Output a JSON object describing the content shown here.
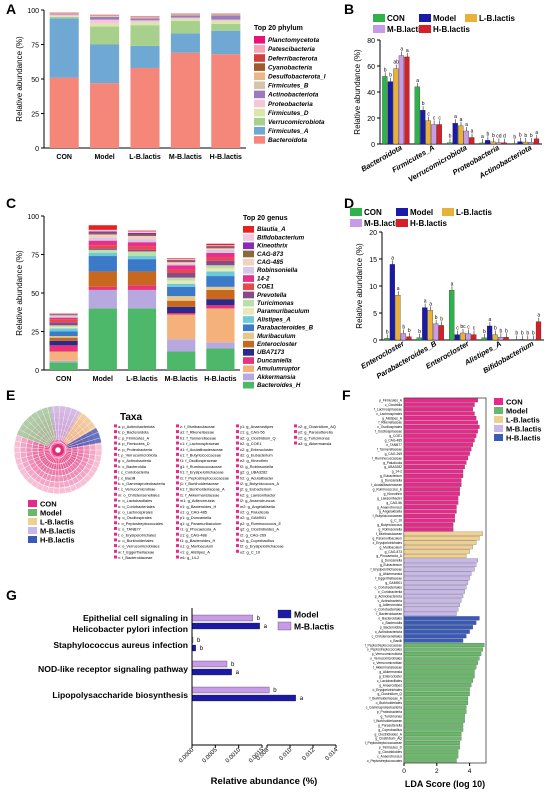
{
  "panel_letters": {
    "a": "A",
    "b": "B",
    "c": "C",
    "d": "D",
    "e": "E",
    "f": "F",
    "g": "G"
  },
  "colors": {
    "con": "#2db34a",
    "model": "#1a1aa6",
    "lb": "#e8b23a",
    "mb": "#c89be8",
    "hb": "#d61f26",
    "grid": "#888888"
  },
  "chart_data": [
    {
      "id": "A",
      "type": "bar",
      "stacked": true,
      "ylabel": "Relative abundance (%)",
      "categories": [
        "CON",
        "Model",
        "L-B.lactis",
        "M-B.lactis",
        "H-B.lactis"
      ],
      "ylim": [
        0,
        100
      ],
      "yticks": [
        "0",
        "25",
        "50",
        "75",
        "100"
      ],
      "legend_title": "Top 20 phylum",
      "series": [
        {
          "name": "Bacteroidota",
          "color": "#f4877a",
          "values": [
            51,
            47,
            58,
            69,
            68
          ]
        },
        {
          "name": "Firmicutes_A",
          "color": "#6fa8d2",
          "values": [
            43,
            28,
            16,
            14,
            17
          ]
        },
        {
          "name": "Verrucomicrobiota",
          "color": "#a8d08d",
          "values": [
            1,
            13,
            15,
            9,
            5
          ]
        },
        {
          "name": "Firmicutes_D",
          "color": "#d8e8a8",
          "values": [
            0.5,
            2,
            2,
            1.5,
            2
          ]
        },
        {
          "name": "Proteobacteria",
          "color": "#f4c7d8",
          "values": [
            1,
            3,
            1.5,
            1,
            1
          ]
        },
        {
          "name": "Actinobacteriota",
          "color": "#9a7cbc",
          "values": [
            0.5,
            2,
            1.5,
            1.5,
            3
          ]
        },
        {
          "name": "Firmicutes_B",
          "color": "#d8c4a8",
          "values": [
            0.3,
            0.5,
            0.5,
            0.5,
            0.5
          ]
        },
        {
          "name": "Desulfobacterota_I",
          "color": "#e8b888",
          "values": [
            0.2,
            0.3,
            0.3,
            0.3,
            0.3
          ]
        },
        {
          "name": "Cyanobacteria",
          "color": "#a05a2c",
          "values": [
            0.2,
            0.2,
            0.2,
            0.2,
            0.2
          ]
        },
        {
          "name": "Deferribacterota",
          "color": "#d04040",
          "values": [
            0.2,
            0.2,
            0.2,
            0.2,
            0.2
          ]
        },
        {
          "name": "Patescibacteria",
          "color": "#f4a6b8",
          "values": [
            0.3,
            0.4,
            0.3,
            0.3,
            0.3
          ]
        },
        {
          "name": "Planctomycetota",
          "color": "#e8127a",
          "values": [
            0.1,
            0.1,
            0.1,
            0.1,
            0.1
          ]
        }
      ],
      "legend_labels": [
        "Planctomycetota",
        "Patescibacteria",
        "Deferribacterota",
        "Cyanobacteria",
        "Desulfobacterota_I",
        "Firmicutes_B",
        "Actinobacteriota",
        "Proteobacteria",
        "Firmicutes_D",
        "Verrucomicrobiota",
        "Firmicutes_A",
        "Bacteroidota"
      ]
    },
    {
      "id": "B",
      "type": "bar",
      "ylabel": "Relative abundance (%)",
      "categories": [
        "Bacteroidota",
        "Firmicutes_A",
        "Verrucomicrobiota",
        "Proteobacteria",
        "Actinobacteriota"
      ],
      "ylim": [
        0,
        80
      ],
      "yticks": [
        "0",
        "20",
        "40",
        "60",
        "80"
      ],
      "series": [
        {
          "name": "CON",
          "values": [
            52,
            44,
            1,
            0.8,
            0.4
          ],
          "letters": [
            "b",
            "a",
            "b",
            "a",
            "b"
          ]
        },
        {
          "name": "Model",
          "values": [
            48,
            26,
            16,
            2.8,
            1.8
          ],
          "letters": [
            "b",
            "b",
            "a",
            "b",
            "b"
          ]
        },
        {
          "name": "L-B.lactis",
          "values": [
            58,
            18,
            14,
            1.6,
            1.5
          ],
          "letters": [
            "ab",
            "c",
            "a",
            "b",
            "b"
          ]
        },
        {
          "name": "M-B.lactis",
          "values": [
            68,
            15,
            10,
            1.1,
            1.4
          ],
          "letters": [
            "a",
            "c",
            "a",
            "cd",
            "b"
          ]
        },
        {
          "name": "H-B.lactis",
          "values": [
            67,
            15,
            5,
            1,
            4
          ],
          "letters": [
            "a",
            "c",
            "a",
            "d",
            "a"
          ]
        }
      ]
    },
    {
      "id": "C",
      "type": "bar",
      "stacked": true,
      "ylabel": "Relative abundance (%)",
      "categories": [
        "CON",
        "Model",
        "L-B.lactis",
        "M-B.lactis",
        "H-B.lactis"
      ],
      "ylim": [
        0,
        100
      ],
      "yticks": [
        "0",
        "25",
        "50",
        "75",
        "100"
      ],
      "legend_title": "Top 20 genus",
      "series": [
        {
          "name": "Bacteroides_H",
          "color": "#4db86a",
          "values": [
            5,
            40,
            40,
            12,
            14
          ]
        },
        {
          "name": "Akkermansia",
          "color": "#b8a8e0",
          "values": [
            1,
            12,
            12,
            8,
            4
          ]
        },
        {
          "name": "Amulumruptor",
          "color": "#f4b27a",
          "values": [
            6,
            0,
            0,
            16,
            22
          ]
        },
        {
          "name": "Duncaniella",
          "color": "#e8327a",
          "values": [
            4,
            2,
            3,
            1,
            2
          ]
        },
        {
          "name": "UBA7173",
          "color": "#2a2a8a",
          "values": [
            3,
            0,
            0,
            4,
            4
          ]
        },
        {
          "name": "Enterocloster",
          "color": "#c8681e",
          "values": [
            2,
            10,
            9,
            4,
            6
          ]
        },
        {
          "name": "Muribaculum",
          "color": "#e8c88a",
          "values": [
            1,
            0,
            0,
            3,
            2
          ]
        },
        {
          "name": "Parabacteroides_B",
          "color": "#3a7ac8",
          "values": [
            3,
            10,
            8,
            6,
            7
          ]
        },
        {
          "name": "Alistipes_A",
          "color": "#6ecad8",
          "values": [
            2,
            2,
            2,
            2,
            3
          ]
        },
        {
          "name": "Paramuribaculum",
          "color": "#e8e8b8",
          "values": [
            1,
            0,
            0,
            2,
            2
          ]
        },
        {
          "name": "Turicimonas",
          "color": "#b8e0a8",
          "values": [
            1,
            2,
            3,
            2,
            2
          ]
        },
        {
          "name": "Prevotella",
          "color": "#8a4a8a",
          "values": [
            2,
            1,
            1,
            3,
            3
          ]
        },
        {
          "name": "COE1",
          "color": "#e84848",
          "values": [
            2,
            2,
            2,
            2,
            2
          ]
        },
        {
          "name": "14-2",
          "color": "#e8308a",
          "values": [
            1,
            3,
            3,
            3,
            3
          ]
        },
        {
          "name": "Robinsoniella",
          "color": "#d8c8e8",
          "values": [
            1,
            2,
            2,
            1,
            2
          ]
        },
        {
          "name": "CAG-485",
          "color": "#f4d0c0",
          "values": [
            0.5,
            2,
            2,
            1,
            1
          ]
        },
        {
          "name": "CAG-873",
          "color": "#8a6a3a",
          "values": [
            0.5,
            1,
            1,
            1,
            1
          ]
        },
        {
          "name": "Kineothrix",
          "color": "#8a2ab8",
          "values": [
            0.3,
            1,
            1,
            0.5,
            0.5
          ]
        },
        {
          "name": "Bifidobacterium",
          "color": "#f4c8e0",
          "values": [
            0.3,
            1,
            1,
            0.5,
            0.5
          ]
        },
        {
          "name": "Blautia_A",
          "color": "#e82020",
          "values": [
            0.2,
            3,
            0.5,
            0.5,
            1
          ]
        }
      ],
      "legend_labels": [
        "Blautia_A",
        "Bifidobacterium",
        "Kineothrix",
        "CAG-873",
        "CAG-485",
        "Robinsoniella",
        "14-2",
        "COE1",
        "Prevotella",
        "Turicimonas",
        "Paramuribaculum",
        "Alistipes_A",
        "Parabacteroides_B",
        "Muribaculum",
        "Enterocloster",
        "UBA7173",
        "Duncaniella",
        "Amulumruptor",
        "Akkermansia",
        "Bacteroides_H"
      ]
    },
    {
      "id": "D",
      "type": "bar",
      "ylabel": "Relative abundance (%)",
      "categories": [
        "Enterocloster",
        "Parabacteroides_B",
        "Enterocloster",
        "Alistipes_A",
        "Bifidobacterium"
      ],
      "ylim": [
        0,
        20
      ],
      "yticks": [
        "0",
        "5",
        "10",
        "15",
        "20"
      ],
      "series": [
        {
          "name": "CON",
          "values": [
            0.3,
            0.4,
            9.2,
            0.4,
            0.1
          ],
          "letters": [
            "b",
            "b",
            "a",
            "b",
            "b"
          ]
        },
        {
          "name": "Model",
          "values": [
            14,
            6,
            1,
            2.6,
            0.1
          ],
          "letters": [
            "a",
            "a",
            "c",
            "a",
            "b"
          ]
        },
        {
          "name": "L-B.lactis",
          "values": [
            8.3,
            5.5,
            1.3,
            1,
            0.1
          ],
          "letters": [
            "a",
            "a",
            "bc",
            "b",
            "b"
          ]
        },
        {
          "name": "M-B.lactis",
          "values": [
            1.2,
            3,
            1.2,
            0.5,
            0.1
          ],
          "letters": [
            "b",
            "b",
            "c",
            "b",
            "b"
          ]
        },
        {
          "name": "H-B.lactis",
          "values": [
            0.6,
            2.7,
            1,
            0.5,
            3.4
          ],
          "letters": [
            "b",
            "b",
            "c",
            "b",
            "a"
          ]
        }
      ]
    },
    {
      "id": "G",
      "type": "bar",
      "orientation": "horizontal",
      "xlabel": "Relative abundance (%)",
      "categories": [
        "Epithelial cell signaling in Helicobacter pylori infection",
        "Staphylococcus aureus infection",
        "NOD-like receptor signaling pathway",
        "Lipopolysaccharide biosynthesis"
      ],
      "x_left_ticks": [
        "0.0000",
        "0.0005",
        "0.0010",
        "0.0015"
      ],
      "x_right_ticks": [
        "0.008",
        "0.010",
        "0.012",
        "0.014"
      ],
      "series": [
        {
          "name": "Model",
          "values": [
            0.00145,
            8e-05,
            0.00085,
            0.0105
          ],
          "letters": [
            "a",
            "b",
            "a",
            "a"
          ]
        },
        {
          "name": "M-B.lactis",
          "values": [
            0.0013,
            2e-05,
            0.00075,
            0.0082
          ],
          "letters": [
            "b",
            "b",
            "b",
            "b"
          ]
        }
      ]
    }
  ],
  "legend_groups": [
    "CON",
    "Model",
    "L-B.lactis",
    "M-B.lactis",
    "H-B.lactis"
  ],
  "legend_groups_g": [
    "Model",
    "M-B.lactis"
  ],
  "panel_e": {
    "taxa_title": "Taxa",
    "col1": [
      "a: p_Actinobacteriota",
      "b: p_Bacteroidota",
      "c: p_Firmicutes_A",
      "d: p_Firmicutes_D",
      "e: p_Proteobacteria",
      "f: p_Verrucomicrobiota",
      "g: c_Actinobacteria",
      "h: c_Bacteroidia",
      "i: c_Coriobacteriia",
      "j: c_Bacilli",
      "k: c_Gammaproteobacteria",
      "l: c_Verrucomicrobiae",
      "m: o_Christensenellales",
      "n: o_Lactobacillales",
      "o: o_Coriobacteriales",
      "p: o_Lachnospirales",
      "q: o_Oscillospirales",
      "r: o_Peptostreptococcales",
      "s: o_TANB77",
      "t: o_Erysipelotrichales",
      "u: o_Burkholderiales",
      "v: o_Verrucomicrobiales",
      "w: f_Eggerthellaceae",
      "x: f_Bacteroidaceae"
    ],
    "col2": [
      "z: f_Muribaculaceae",
      "a1: f_Rikenellaceae",
      "b1: f_Tannerellaceae",
      "c1: f_Lachnospiraceae",
      "d1: f_Acutalibacteraceae",
      "e1: f_Butyricicoccaceae",
      "f1: f_Oscillospiraceae",
      "g1: f_Ruminococcaceae",
      "h1: f_Erysipelotrichaceae",
      "i1: f_Peptostreptococcaceae",
      "j1: f_Burkholderiaceae",
      "k1: f_Burkholderiaceae_A",
      "l1: f_Akkermansiaceae",
      "m1: g_Adlercreutzia",
      "n1: g_Bacteroides_H",
      "o1: g_CAG-485",
      "p1: g_Duncaniella",
      "q1: g_Paramuribaculum",
      "r1: g_Phocaeicola_A",
      "s1: g_CAG-488",
      "t1: g_Bacteroides_H",
      "u1: g_Muribaculum",
      "v1: g_Alistipes_A",
      "w1: g_14-2"
    ],
    "col3": [
      "y1: g_Anaerostipes",
      "z1: g_CAG-56",
      "a2: g_Clostridium_Q",
      "b2: g_COE1",
      "c2: g_Enterocloster",
      "d2: g_Eubacterium",
      "e2: g_Kineothrix",
      "f2: g_Robinsoniella",
      "g2: g_UBA3282",
      "h2: g_Acutalibacter",
      "i2: g_Butyricicoccus_A",
      "j2: g_Eubacterium",
      "k2: g_Lawsonibacter",
      "l2: g_Anaerotruncus",
      "m2: g_Angelakisella",
      "n2: g_Paludicola",
      "o2: g_GAM901",
      "p2: g_Ruminococcus_E",
      "q2: g_Clostridioides_A",
      "r2: g_CAG-269",
      "s2: g_Coprobacillus",
      "t2: g_Erysipelotrichaceae",
      "u2: g_C_10"
    ],
    "col4": [
      "x2: g_Clostridium_AQ",
      "y2: g_Parasutterella",
      "z2: g_Turicimonas",
      "a3: g_Akkermansia"
    ]
  },
  "panel_f": {
    "xlabel": "LDA Score (log 10)",
    "xticks": [
      "0",
      "2",
      "4"
    ],
    "groups": [
      {
        "name": "CON",
        "color": "#e8288a",
        "start": 0,
        "count": 30
      },
      {
        "name": "L-B.lactis",
        "color": "#f0d090",
        "start": 30,
        "count": 6
      },
      {
        "name": "M-B.lactis",
        "color": "#c8b8e8",
        "start": 36,
        "count": 13
      },
      {
        "name": "H-B.lactis",
        "color": "#3a5ab8",
        "start": 49,
        "count": 6
      },
      {
        "name": "Model",
        "color": "#6ab86a",
        "start": 55,
        "count": 27
      }
    ],
    "values": [
      4.5,
      4.3,
      4.2,
      4.3,
      4.4,
      4.5,
      4.6,
      4.5,
      4.4,
      4.3,
      4.2,
      4.1,
      4.0,
      3.9,
      3.8,
      3.7,
      3.6,
      3.6,
      3.5,
      3.5,
      3.4,
      3.4,
      3.3,
      3.3,
      3.2,
      3.2,
      3.1,
      3.1,
      3.0,
      3.0,
      4.8,
      4.6,
      4.4,
      4.2,
      4.0,
      3.8,
      4.5,
      4.4,
      4.3,
      4.1,
      4.0,
      3.9,
      3.8,
      3.7,
      3.6,
      3.5,
      3.4,
      3.3,
      3.2,
      4.6,
      4.4,
      4.2,
      4.0,
      3.8,
      3.6,
      4.9,
      4.8,
      4.7,
      4.6,
      4.5,
      4.4,
      4.3,
      4.3,
      4.2,
      4.1,
      4.0,
      4.0,
      3.9,
      3.9,
      3.8,
      3.8,
      3.7,
      3.7,
      3.6,
      3.6,
      3.5,
      3.5,
      3.4,
      3.4,
      3.3,
      3.3,
      3.2
    ],
    "labels": [
      "p_Firmicutes_A",
      "c_Clostridia",
      "f_Lachnospiraceae",
      "c_Lachnospirales",
      "g_Alistipes_A",
      "f_Rikenellaceae",
      "c_Oscillospirales",
      "f_Oscillospiraceae",
      "g_COE1",
      "g_CAG-485",
      "o_TANB77",
      "f_Tannerellaceae",
      "g_CAG-269",
      "f_Ruminococcaceae",
      "g_Paludicola",
      "g_UBA3282",
      "g_14-2",
      "g_Eubacterium",
      "g_Duncaniella",
      "f_Acutalibacteraceae",
      "g_Ruminococcus_E",
      "g_Kineothrix",
      "g_Lawsonibacter",
      "g_CAG-56",
      "g_Anaerotruncus",
      "g_Angelakisella",
      "f_Butyricicoccaceae",
      "g_C_10",
      "g_Butyricicoccus",
      "g_Robinsoniella",
      "f_Muribaculaceae",
      "g_Paramuribaculum",
      "c_Erysipelotrichales",
      "g_Muribaculum",
      "g_CAG-873",
      "g_Phocaeicola_A",
      "g_Duncaniella",
      "g_Eubacterium",
      "f_Erysipelotrichaceae",
      "g_Akkermansia",
      "f_Eggerthellaceae",
      "g_GAM901",
      "o_Coriobacteriales",
      "c_Coriobacteriia",
      "p_Actinobacteriota",
      "c_Actinobacteria",
      "g_Adlercreutzia",
      "o_Coriobacteriales",
      "f_Bacteroidaceae",
      "o_Bacteroidales",
      "c_Bacteroidia",
      "p_Bacteroidota",
      "o_Actinobacteriota",
      "c_Christensenellales",
      "c_Bacilli",
      "f_Peptostreptococcaceae",
      "o_Peptostreptococcales",
      "p_Verrucomicrobiota",
      "o_Verrucomicrobiales",
      "c_Verrucomicrobiae",
      "f_Akkermansiaceae",
      "g_Akkermansia",
      "g_Enterocloster",
      "c_Lactobacillales",
      "g_Anaerostipes",
      "o_Erysipelotrichales",
      "g_Clostridium_Q",
      "f_Burkholderiaceae_A",
      "o_Burkholderiales",
      "c_Gammaproteobacteria",
      "p_Proteobacteria",
      "g_Turicimonas",
      "f_Burkholderiaceae",
      "g_Parasutterella",
      "g_Coprobacillus",
      "g_Clostridioides_A",
      "g_Clostridium_AQ",
      "f_Peptostreptococcaceae",
      "p_Firmicutes_D",
      "g_Clostridioides",
      "c_Anaerotruncus",
      "o_Peptostreptococcales"
    ]
  }
}
